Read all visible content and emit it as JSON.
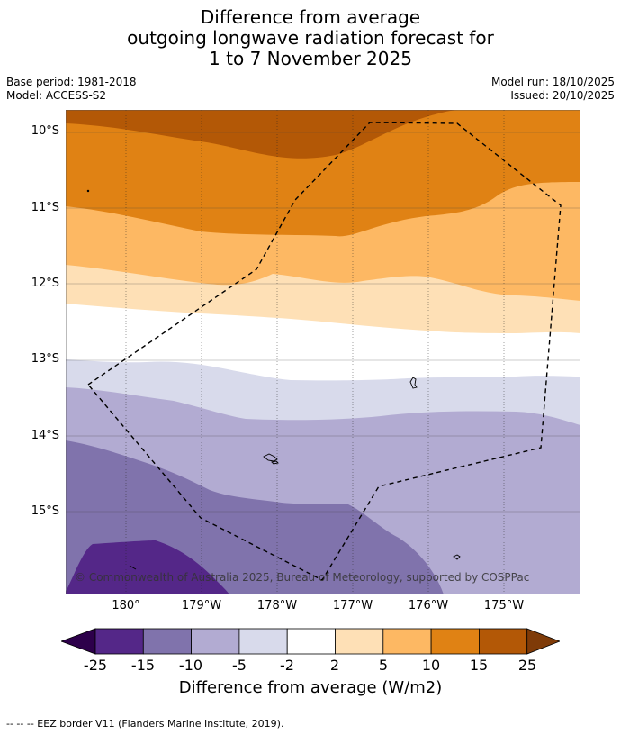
{
  "title": {
    "line1": "Difference from average",
    "line2": "outgoing longwave radiation forecast for",
    "line3": "1 to 7 November 2025"
  },
  "meta": {
    "base_period": "Base period: 1981-2018",
    "model": "Model: ACCESS-S2",
    "model_run": "Model run: 18/10/2025",
    "issued": "Issued: 20/10/2025"
  },
  "map": {
    "copyright": "© Commonwealth of Australia 2025, Bureau of Meteorology, supported by COSPPac",
    "lat_labels": [
      "10°S",
      "11°S",
      "12°S",
      "13°S",
      "14°S",
      "15°S"
    ],
    "lon_labels": [
      "180°",
      "179°W",
      "178°W",
      "177°W",
      "176°W",
      "175°W"
    ],
    "band_colors": [
      "#b35806",
      "#e08214",
      "#fdb863",
      "#fee0b6",
      "#ffffff",
      "#d8daeb",
      "#b2abd2",
      "#8073ac",
      "#542788"
    ]
  },
  "colorbar": {
    "levels": [
      "-25",
      "-15",
      "-10",
      "-5",
      "-2",
      "2",
      "5",
      "10",
      "15",
      "25"
    ],
    "colors": [
      "#2d004b",
      "#542788",
      "#8073ac",
      "#b2abd2",
      "#d8daeb",
      "#ffffff",
      "#fee0b6",
      "#fdb863",
      "#e08214",
      "#b35806",
      "#7f3b08"
    ],
    "title": "Difference from average (W/m2)"
  },
  "footnote": "--  --  -- EEZ border V11 (Flanders Marine Institute, 2019)."
}
